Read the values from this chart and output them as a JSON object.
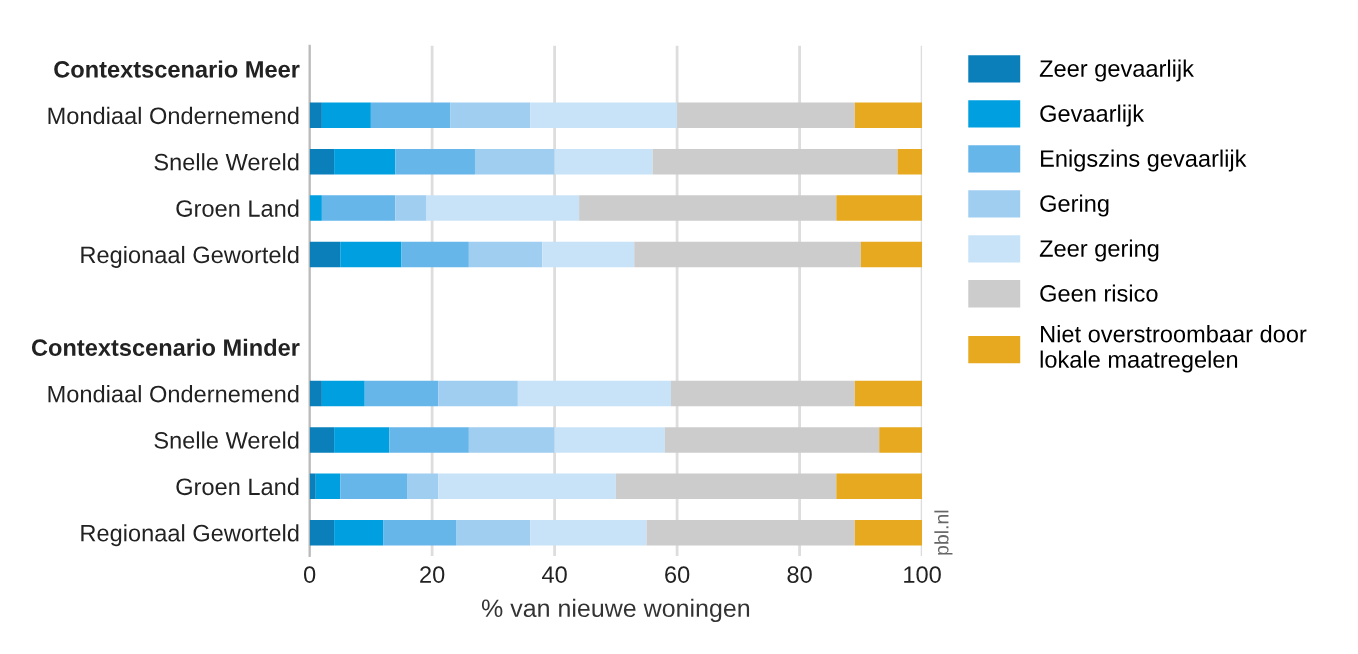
{
  "chart_data": {
    "type": "bar",
    "orientation": "horizontal",
    "stacked": true,
    "categories": [
      "Contextscenario Meer",
      "Mondiaal Ondernemend",
      "Snelle Wereld",
      "Groen Land",
      "Regionaal Geworteld",
      null,
      "Contextscenario Minder",
      "Mondiaal Ondernemend",
      "Snelle Wereld",
      "Groen Land",
      "Regionaal Geworteld"
    ],
    "series": [
      {
        "name": "Zeer gevaarlijk",
        "color": "#0a7fb9",
        "values": [
          null,
          2,
          4,
          0,
          5,
          null,
          null,
          2,
          4,
          1,
          4
        ]
      },
      {
        "name": "Gevaarlijk",
        "color": "#009fe0",
        "values": [
          null,
          8,
          10,
          2,
          10,
          null,
          null,
          7,
          9,
          4,
          8
        ]
      },
      {
        "name": "Enigszins gevaarlijk",
        "color": "#66b6ea",
        "values": [
          null,
          13,
          13,
          12,
          11,
          null,
          null,
          12,
          13,
          11,
          12
        ]
      },
      {
        "name": "Gering",
        "color": "#a0cef1",
        "values": [
          null,
          13,
          13,
          5,
          12,
          null,
          null,
          13,
          14,
          5,
          12
        ]
      },
      {
        "name": "Zeer gering",
        "color": "#c8e3f7",
        "values": [
          null,
          24,
          16,
          25,
          15,
          null,
          null,
          25,
          18,
          29,
          19
        ]
      },
      {
        "name": "Geen risico",
        "color": "#cccccc",
        "values": [
          null,
          29,
          40,
          42,
          37,
          null,
          null,
          30,
          35,
          36,
          34
        ]
      },
      {
        "name": "Niet overstroombaar door\nlokale maatregelen",
        "color": "#e6a91f",
        "values": [
          null,
          11,
          4,
          14,
          10,
          null,
          null,
          11,
          7,
          14,
          11
        ]
      }
    ],
    "xlim": [
      0,
      100
    ],
    "xticks": [
      0,
      20,
      40,
      60,
      80,
      100
    ],
    "xlabel": "% van nieuwe woningen",
    "grid": "x",
    "legend": "right",
    "annotations": [
      "pbl.nl"
    ]
  }
}
